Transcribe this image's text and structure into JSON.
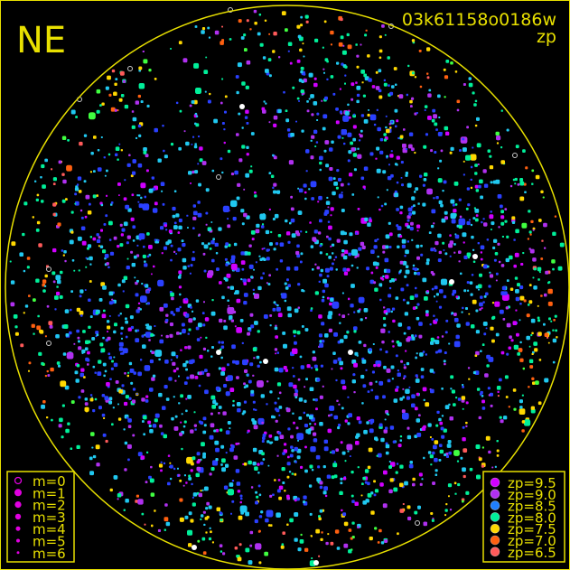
{
  "chart_data": {
    "type": "scatter",
    "title": "NE",
    "frame_id": "03k61158o0186w",
    "color_key": "zp",
    "horizon_circle_color": "#e8e000",
    "size_legend": [
      {
        "label": "m=0",
        "style": "open-circle"
      },
      {
        "label": "m=1"
      },
      {
        "label": "m=2"
      },
      {
        "label": "m=3"
      },
      {
        "label": "m=4"
      },
      {
        "label": "m=5"
      },
      {
        "label": "m=6"
      }
    ],
    "size_legend_color": "#e000e0",
    "color_legend": [
      {
        "label": "zp=9.5",
        "value": 9.5,
        "color": "#d000ff"
      },
      {
        "label": "zp=9.0",
        "value": 9.0,
        "color": "#b030f0"
      },
      {
        "label": "zp=8.5",
        "value": 8.5,
        "color": "#1f7fff"
      },
      {
        "label": "zp=8.0",
        "value": 8.0,
        "color": "#00f09a"
      },
      {
        "label": "zp=7.5",
        "value": 7.5,
        "color": "#ffd800"
      },
      {
        "label": "zp=7.0",
        "value": 7.0,
        "color": "#ff6010"
      },
      {
        "label": "zp=6.5",
        "value": 6.5,
        "color": "#ff5a5a"
      }
    ]
  }
}
